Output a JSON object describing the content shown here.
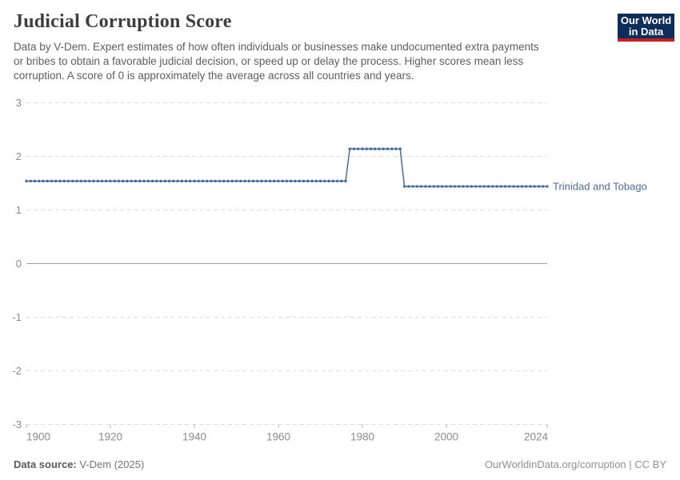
{
  "header": {
    "title": "Judicial Corruption Score",
    "subtitle_lines": [
      "Data by V-Dem. Expert estimates of how often individuals or businesses make undocumented extra payments",
      "or bribes to obtain a favorable judicial decision, or speed up or delay the process. Higher scores mean less",
      "corruption. A score of 0 is approximately the average across all countries and years."
    ],
    "logo": {
      "line1": "Our World",
      "line2": "in Data",
      "bg_color": "#0F2D5A",
      "accent_color": "#BE2324"
    }
  },
  "chart_data": {
    "type": "line",
    "title": "Judicial Corruption Score",
    "series": [
      {
        "name": "Trinidad and Tobago",
        "color": "#4C6A9C",
        "segments": [
          {
            "start_year": 1900,
            "end_year": 1976,
            "value": 1.54
          },
          {
            "start_year": 1977,
            "end_year": 1989,
            "value": 2.14
          },
          {
            "start_year": 1990,
            "end_year": 2024,
            "value": 1.44
          }
        ]
      }
    ],
    "x": {
      "min": 1900,
      "max": 2024,
      "ticks": [
        1900,
        1920,
        1940,
        1960,
        1980,
        2000,
        2024
      ]
    },
    "y": {
      "min": -3,
      "max": 3,
      "ticks": [
        3,
        2,
        1,
        0,
        -1,
        -2,
        -3
      ]
    },
    "grid": "dashed",
    "zero_line": true,
    "legend_position": "end-of-line"
  },
  "footer": {
    "source_label": "Data source:",
    "source_value": "V-Dem (2025)",
    "credit": "OurWorldinData.org/corruption | CC BY"
  },
  "colors": {
    "grid": "#dcdcdc",
    "zero_line": "#9f9f9f",
    "axis_text": "#8b8b8b",
    "tick": "#b0b0b0"
  }
}
